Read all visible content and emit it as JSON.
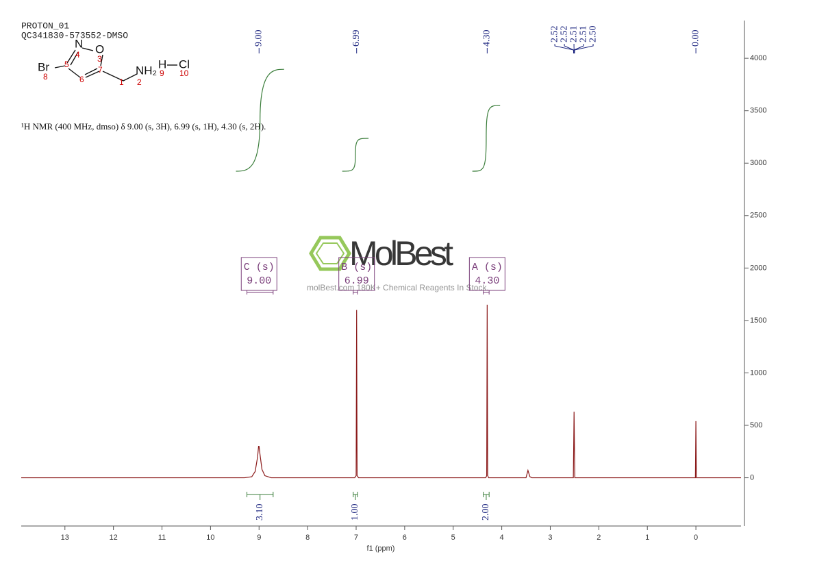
{
  "header": {
    "lines": [
      "PROTON_01",
      "QC341830-573552-DMSO"
    ],
    "nmr_text": "¹H NMR (400 MHz, dmso) δ 9.00 (s, 3H), 6.99 (s, 1H), 4.30 (s, 2H)."
  },
  "molecule": {
    "atoms": [
      "Br",
      "N",
      "O",
      "NH₂",
      "H",
      "Cl"
    ],
    "locants": [
      4,
      3,
      5,
      7,
      6,
      1,
      2,
      9,
      10,
      8
    ]
  },
  "watermark": {
    "brand": "MolBest",
    "tagline": "molBest.com 180K+ Chemical Reagents In Stock."
  },
  "chart_data": {
    "type": "line",
    "xlabel": "f1 (ppm)",
    "color": "#8b1a1a",
    "xlim": [
      13.9,
      -0.93
    ],
    "xticks": [
      13,
      12,
      11,
      10,
      9,
      8,
      7,
      6,
      5,
      4,
      3,
      2,
      1,
      0
    ],
    "ylim": [
      -460,
      4360
    ],
    "yticks": [
      0,
      500,
      1000,
      1500,
      2000,
      2500,
      3000,
      3500,
      4000
    ],
    "x": [
      13.9,
      9.3,
      9.15,
      9.08,
      9.03,
      9.01,
      9.0,
      8.98,
      8.94,
      8.88,
      8.75,
      7.03,
      7.0,
      6.99,
      6.98,
      6.95,
      4.33,
      4.31,
      4.3,
      4.29,
      4.27,
      3.5,
      3.46,
      3.42,
      3.38,
      2.525,
      2.51,
      2.495,
      0.01,
      0.0,
      -0.01,
      -0.93
    ],
    "values": [
      0,
      0,
      10,
      60,
      200,
      300,
      300,
      220,
      80,
      20,
      0,
      0,
      20,
      1600,
      20,
      0,
      0,
      20,
      1650,
      20,
      0,
      0,
      70,
      10,
      0,
      0,
      630,
      0,
      0,
      540,
      0,
      0
    ],
    "peaks": {
      "values": [
        9.0,
        6.99,
        4.3,
        2.52,
        2.52,
        2.51,
        2.51,
        2.5,
        0.0
      ],
      "value_labels": [
        "9.00",
        "6.99",
        "4.30",
        "2.52",
        "2.52",
        "2.51",
        "2.51",
        "2.50",
        "0.00"
      ],
      "color": "#1a237e"
    },
    "multiplets": {
      "labels": [
        "C (s)",
        "B (s)",
        "A (s)"
      ],
      "values": [
        9.0,
        6.99,
        4.3
      ],
      "value_labels": [
        "9.00",
        "6.99",
        "4.30"
      ],
      "color": "#7b3f7b"
    },
    "integrals": {
      "from": [
        9.25,
        7.06,
        4.38
      ],
      "to": [
        8.71,
        6.97,
        4.26
      ],
      "values": [
        3.1,
        1.0,
        2.0
      ],
      "value_labels": [
        "3.10",
        "1.00",
        "2.00"
      ],
      "color": "#3a7d3a"
    }
  }
}
